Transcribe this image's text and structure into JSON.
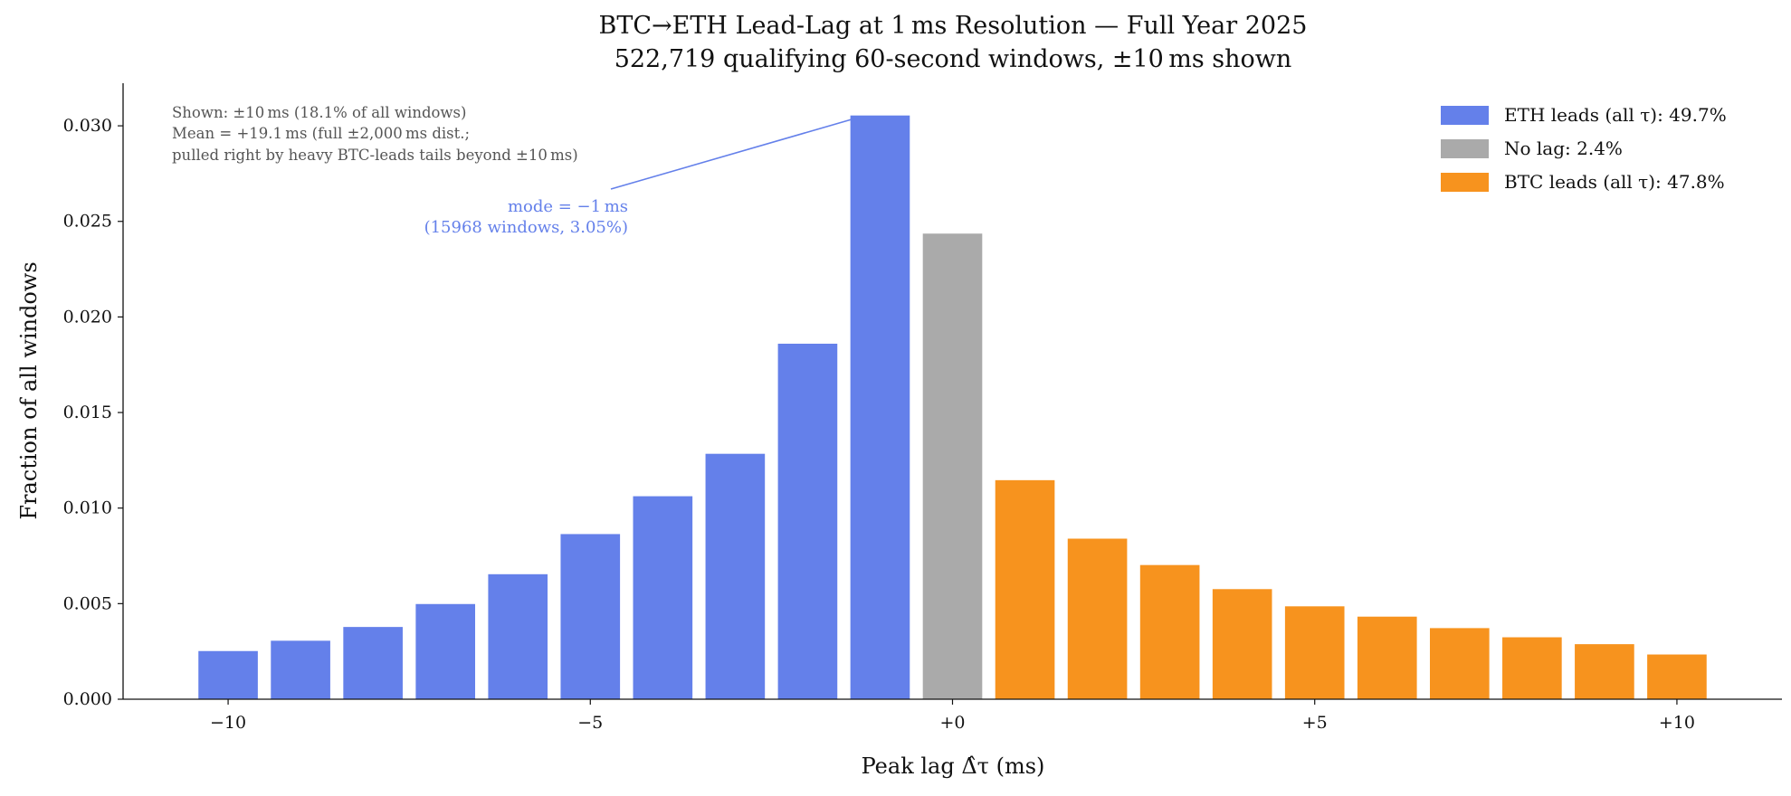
{
  "chart_data": {
    "type": "bar",
    "title": "BTC→ETH Lead-Lag at 1 ms Resolution — Full Year 2025",
    "subtitle": "522,719 qualifying 60-second windows, ±10 ms shown",
    "xlabel": "Peak lag Δ̂τ (ms)",
    "ylabel": "Fraction of all windows",
    "x": [
      -10,
      -9,
      -8,
      -7,
      -6,
      -5,
      -4,
      -3,
      -2,
      -1,
      0,
      1,
      2,
      3,
      4,
      5,
      6,
      7,
      8,
      9,
      10
    ],
    "values": [
      0.00252,
      0.00306,
      0.00378,
      0.00498,
      0.00654,
      0.00864,
      0.01062,
      0.01284,
      0.0186,
      0.03054,
      0.02436,
      0.01146,
      0.0084,
      0.00702,
      0.00576,
      0.00486,
      0.00432,
      0.00372,
      0.00324,
      0.00288,
      0.00234
    ],
    "xlim": [
      -11.45,
      11.45
    ],
    "ylim": [
      0,
      0.0322
    ],
    "xticks": [
      -10,
      -5,
      0,
      5,
      10
    ],
    "xtick_labels": [
      "−10",
      "−5",
      "+0",
      "+5",
      "+10"
    ],
    "yticks": [
      0,
      0.005,
      0.01,
      0.015,
      0.02,
      0.025,
      0.03
    ],
    "ytick_labels": [
      "0.000",
      "0.005",
      "0.010",
      "0.015",
      "0.020",
      "0.025",
      "0.030"
    ],
    "grid": false,
    "colors": {
      "eth_leads": "#6480ea",
      "no_lag": "#aaaaaa",
      "btc_leads": "#f7931e"
    },
    "legend": {
      "placement": "top-right",
      "entries": [
        {
          "label": "ETH leads (all τ): 49.7%",
          "color": "#6480ea"
        },
        {
          "label": "No lag: 2.4%",
          "color": "#aaaaaa"
        },
        {
          "label": "BTC leads (all τ): 47.8%",
          "color": "#f7931e"
        }
      ]
    },
    "annotations": {
      "info": [
        "Shown: ±10 ms (18.1% of all windows)",
        "Mean = +19.1 ms (full ±2,000 ms dist.;",
        "pulled right by heavy BTC-leads tails beyond ±10 ms)"
      ],
      "mode": [
        "mode = −1 ms",
        "(15968 windows, 3.05%)"
      ]
    }
  }
}
